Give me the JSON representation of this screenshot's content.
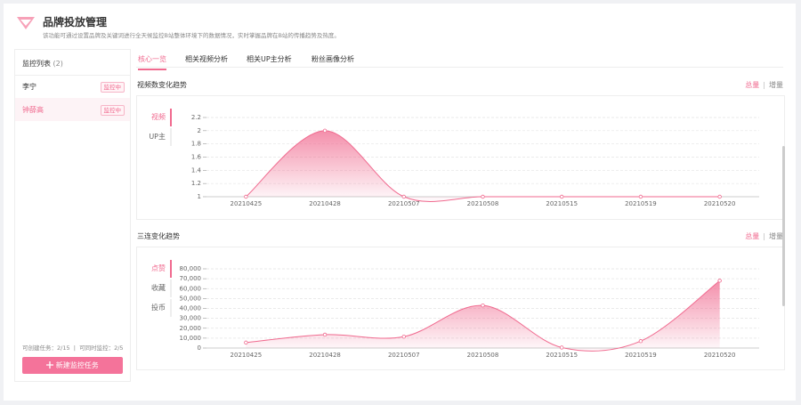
{
  "header": {
    "title": "品牌投放管理",
    "subtitle": "该功能可通过设置品牌及关键词进行全天候监控B站整体环境下的数据情况，实时掌握品牌在B站的传播趋势及热度。"
  },
  "sidebar": {
    "title": "监控列表",
    "count": "(2)",
    "items": [
      {
        "name": "李宁",
        "status": "监控中"
      },
      {
        "name": "钟薛高",
        "status": "监控中"
      }
    ],
    "quota": [
      "可创建任务：2/15",
      "可同时监控：2/5"
    ],
    "button": "新建监控任务"
  },
  "tabs": [
    "核心一览",
    "相关视频分析",
    "相关UP主分析",
    "粉丝画像分析"
  ],
  "charts": [
    {
      "type": "area",
      "title": "视频数变化趋势",
      "modes": [
        "总量",
        "增量"
      ],
      "metrics": [
        "视频",
        "UP主"
      ],
      "categories": [
        "20210425",
        "20210428",
        "20210507",
        "20210508",
        "20210515",
        "20210519",
        "20210520"
      ],
      "values": [
        1,
        2,
        1,
        1,
        1,
        1,
        1
      ],
      "color": "#f06a8f",
      "ylim": [
        1,
        2.2
      ],
      "yticks": [
        1,
        1.2,
        1.4,
        1.6,
        1.8,
        2,
        2.2
      ]
    },
    {
      "type": "area",
      "title": "三连变化趋势",
      "modes": [
        "总量",
        "增量"
      ],
      "metrics": [
        "点赞",
        "收藏",
        "投币"
      ],
      "categories": [
        "20210425",
        "20210428",
        "20210507",
        "20210508",
        "20210515",
        "20210519",
        "20210520"
      ],
      "values": [
        5500,
        13500,
        11500,
        43000,
        500,
        7000,
        68000
      ],
      "color": "#f06a8f",
      "ylim": [
        0,
        80000
      ],
      "yticks": [
        0,
        {
          "value": 10000,
          "label": "10,000"
        },
        {
          "value": 20000,
          "label": "20,000"
        },
        {
          "value": 30000,
          "label": "30,000"
        },
        {
          "value": 40000,
          "label": "40,000"
        },
        {
          "value": 50000,
          "label": "50,000"
        },
        {
          "value": 60000,
          "label": "60,000"
        },
        {
          "value": 70000,
          "label": "70,000"
        },
        {
          "value": 80000,
          "label": "80,000"
        }
      ]
    }
  ]
}
